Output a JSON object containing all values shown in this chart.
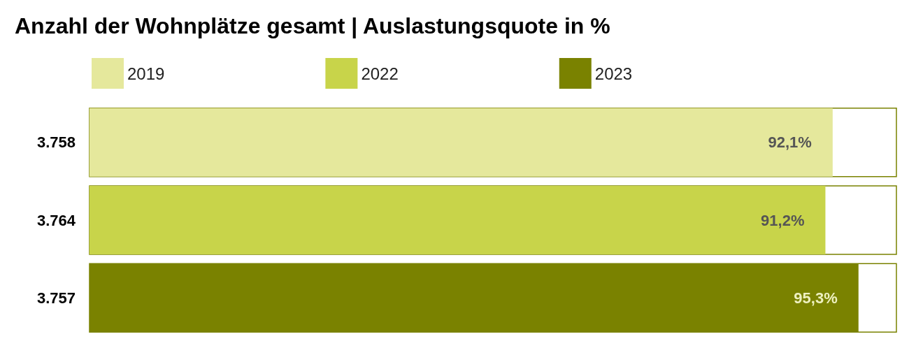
{
  "chart_data": {
    "type": "bar",
    "title": "Anzahl der Wohnplätze gesamt | Auslastungsquote in %",
    "orientation": "horizontal",
    "stacked": true,
    "categories": [
      "3.758",
      "3.764",
      "3.757"
    ],
    "series": [
      {
        "name": "2019",
        "color": "#e5e89c",
        "values": [
          92.1,
          null,
          null
        ],
        "value_labels": [
          "92,1%",
          null,
          null
        ]
      },
      {
        "name": "2022",
        "color": "#c8d44a",
        "values": [
          null,
          91.2,
          null
        ],
        "value_labels": [
          null,
          "91,2%",
          null
        ]
      },
      {
        "name": "2023",
        "color": "#7a8200",
        "values": [
          null,
          null,
          95.3
        ],
        "value_labels": [
          null,
          null,
          "95,3%"
        ]
      }
    ],
    "xlim": [
      0,
      100
    ],
    "tick_labels": "y",
    "legend": "top left",
    "grid": false
  }
}
